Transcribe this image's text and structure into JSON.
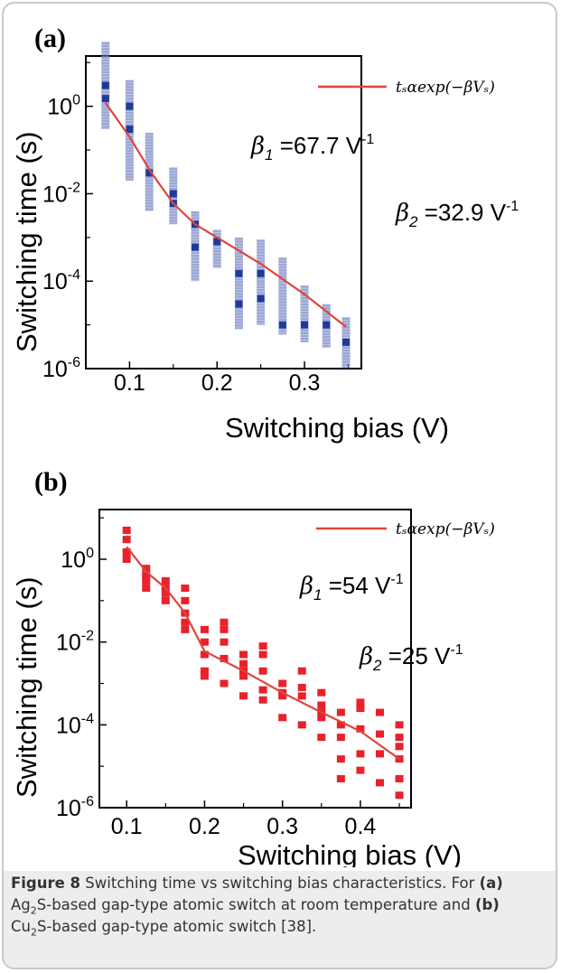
{
  "chart_data": [
    {
      "type": "scatter",
      "panel_label": "(a)",
      "xlabel": "Switching bias (V)",
      "ylabel": "Switching time (s)",
      "xlim": [
        0.05,
        0.365
      ],
      "ylim_log10": [
        -6,
        1.15
      ],
      "y_scale": "log",
      "x_ticks": [
        0.1,
        0.2,
        0.3
      ],
      "x_tick_labels": [
        "0.1",
        "0.2",
        "0.3"
      ],
      "y_ticks_log10": [
        0,
        -2,
        -4,
        -6
      ],
      "y_tick_bases": [
        "10",
        "10",
        "10",
        "10"
      ],
      "y_tick_exponents": [
        "0",
        "-2",
        "-4",
        "-6"
      ],
      "marker_color": "#4a5fb0",
      "marker_color_dark": "#1e3a9a",
      "line_color": "#e0443a",
      "legend": {
        "position": "top-right",
        "text": "tₛαexp(−βVₛ)"
      },
      "annotations": [
        {
          "symbol": "β",
          "subscript": "1",
          "text": "=67.7 V",
          "superscript": "-1"
        },
        {
          "symbol": "β",
          "subscript": "2",
          "text": "=32.9 V",
          "superscript": "-1"
        }
      ],
      "clusters": [
        {
          "x": 0.0725,
          "y_min": 0.3,
          "y_max": 30,
          "dark": [
            1.5,
            3
          ]
        },
        {
          "x": 0.1,
          "y_min": 0.02,
          "y_max": 4,
          "dark": [
            0.3,
            1
          ]
        },
        {
          "x": 0.1225,
          "y_min": 0.004,
          "y_max": 0.25,
          "dark": [
            0.03
          ]
        },
        {
          "x": 0.15,
          "y_min": 0.002,
          "y_max": 0.04,
          "dark": [
            0.006,
            0.01
          ]
        },
        {
          "x": 0.175,
          "y_min": 0.0001,
          "y_max": 0.004,
          "dark": [
            0.002,
            0.0006
          ]
        },
        {
          "x": 0.2,
          "y_min": 0.0002,
          "y_max": 0.0015,
          "dark": [
            0.0008
          ]
        },
        {
          "x": 0.225,
          "y_min": 8e-06,
          "y_max": 0.001,
          "dark": [
            3e-05,
            0.00015
          ]
        },
        {
          "x": 0.25,
          "y_min": 1e-05,
          "y_max": 0.0009,
          "dark": [
            4e-05,
            0.00015
          ]
        },
        {
          "x": 0.275,
          "y_min": 6e-06,
          "y_max": 0.00035,
          "dark": [
            1e-05
          ]
        },
        {
          "x": 0.3,
          "y_min": 4e-06,
          "y_max": 8e-05,
          "dark": [
            1e-05
          ]
        },
        {
          "x": 0.325,
          "y_min": 3e-06,
          "y_max": 3e-05,
          "dark": [
            1e-05
          ]
        },
        {
          "x": 0.3475,
          "y_min": 1e-06,
          "y_max": 1.5e-05,
          "dark": [
            4e-06
          ]
        }
      ],
      "fit_line": {
        "x": [
          0.0725,
          0.1,
          0.125,
          0.15,
          0.175,
          0.2,
          0.25,
          0.3,
          0.3475
        ],
        "y": [
          1.2,
          0.2,
          0.03,
          0.006,
          0.002,
          0.001,
          0.00025,
          5e-05,
          9e-06
        ]
      }
    },
    {
      "type": "scatter",
      "panel_label": "(b)",
      "xlabel": "Switching bias (V)",
      "ylabel": "Switching time (s)",
      "xlim": [
        0.065,
        0.465
      ],
      "ylim_log10": [
        -6,
        1.2
      ],
      "y_scale": "log",
      "x_ticks": [
        0.1,
        0.2,
        0.3,
        0.4
      ],
      "x_tick_labels": [
        "0.1",
        "0.2",
        "0.3",
        "0.4"
      ],
      "y_ticks_log10": [
        0,
        -2,
        -4,
        -6
      ],
      "y_tick_bases": [
        "10",
        "10",
        "10",
        "10"
      ],
      "y_tick_exponents": [
        "0",
        "-2",
        "-4",
        "-6"
      ],
      "marker_color": "#e8212b",
      "line_color": "#e0443a",
      "legend": {
        "position": "top-right",
        "text": "tₛαexp(−βVₛ)"
      },
      "annotations": [
        {
          "symbol": "β",
          "subscript": "1",
          "text": "=54 V",
          "superscript": "-1"
        },
        {
          "symbol": "β",
          "subscript": "2",
          "text": "=25 V",
          "superscript": "-1"
        }
      ],
      "points": {
        "x": [
          0.1,
          0.1,
          0.1,
          0.1,
          0.125,
          0.125,
          0.125,
          0.125,
          0.15,
          0.15,
          0.15,
          0.15,
          0.175,
          0.175,
          0.175,
          0.175,
          0.175,
          0.2,
          0.2,
          0.2,
          0.2,
          0.2,
          0.225,
          0.225,
          0.225,
          0.225,
          0.225,
          0.25,
          0.25,
          0.25,
          0.25,
          0.25,
          0.275,
          0.275,
          0.275,
          0.275,
          0.275,
          0.3,
          0.3,
          0.3,
          0.3,
          0.325,
          0.325,
          0.325,
          0.325,
          0.35,
          0.35,
          0.35,
          0.35,
          0.35,
          0.375,
          0.375,
          0.375,
          0.375,
          0.375,
          0.4,
          0.4,
          0.4,
          0.4,
          0.4,
          0.425,
          0.425,
          0.425,
          0.425,
          0.45,
          0.45,
          0.45,
          0.45,
          0.45,
          0.45
        ],
        "y": [
          5,
          3,
          1.5,
          1,
          0.6,
          0.4,
          0.3,
          0.2,
          0.3,
          0.2,
          0.15,
          0.1,
          0.2,
          0.1,
          0.05,
          0.03,
          0.02,
          0.02,
          0.01,
          0.005,
          0.002,
          0.0015,
          0.03,
          0.02,
          0.01,
          0.004,
          0.001,
          0.005,
          0.003,
          0.002,
          0.0015,
          0.0005,
          0.008,
          0.005,
          0.002,
          0.0007,
          0.0004,
          0.001,
          0.0006,
          0.0005,
          0.00015,
          0.002,
          0.0008,
          0.0005,
          0.0001,
          0.0006,
          0.0003,
          0.0002,
          0.00015,
          5e-05,
          0.0002,
          0.0001,
          5e-05,
          1.5e-05,
          5e-06,
          0.00035,
          0.00025,
          8e-05,
          2e-05,
          8e-06,
          0.0002,
          6e-05,
          2e-05,
          4e-06,
          0.0001,
          5e-05,
          3e-05,
          1.5e-05,
          5e-06,
          2e-06
        ]
      },
      "fit_line": {
        "x": [
          0.1,
          0.125,
          0.15,
          0.175,
          0.2,
          0.25,
          0.3,
          0.35,
          0.4,
          0.45
        ],
        "y": [
          2,
          0.5,
          0.2,
          0.05,
          0.006,
          0.002,
          0.0006,
          0.0002,
          7e-05,
          1.5e-05
        ]
      }
    }
  ],
  "caption": {
    "figure_label": "Figure 8",
    "main_text": " Switching time vs switching bias characteristics. For ",
    "a_label": "(a)",
    "line2_pre": "Ag",
    "line2_sub": "2",
    "line2_post": "S-based gap-type atomic switch at room temperature and ",
    "b_label": "(b)",
    "line3_pre": "Cu",
    "line3_sub": "2",
    "line3_post": "S-based gap-type atomic switch [38]."
  }
}
